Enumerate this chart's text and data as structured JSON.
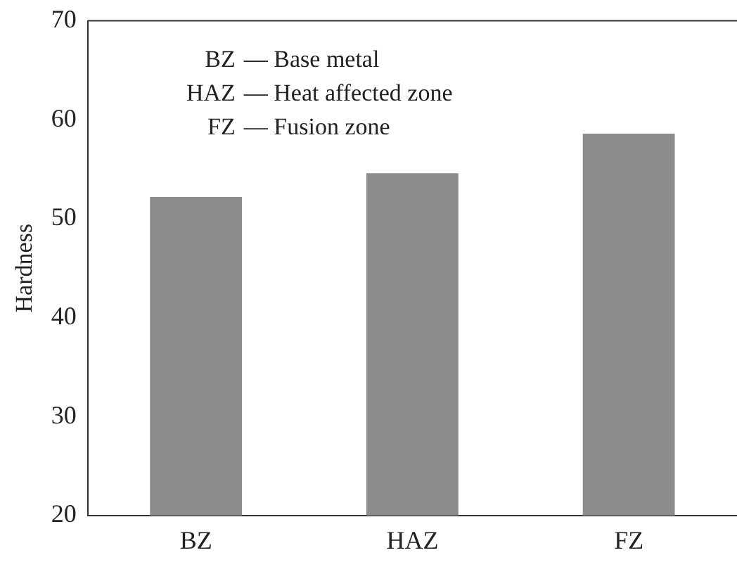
{
  "chart_data": {
    "type": "bar",
    "ylabel": "Hardness",
    "categories": [
      "BZ",
      "HAZ",
      "FZ"
    ],
    "values": [
      52.2,
      54.6,
      58.6
    ],
    "color": "#8c8c8c",
    "ylim": [
      20,
      70
    ],
    "yticks": [
      20,
      30,
      40,
      50,
      60,
      70
    ],
    "grid": false,
    "legend": false,
    "annotations": [
      "BZ — Base metal",
      "HAZ — Heat affected zone",
      "FZ — Fusion zone"
    ]
  }
}
